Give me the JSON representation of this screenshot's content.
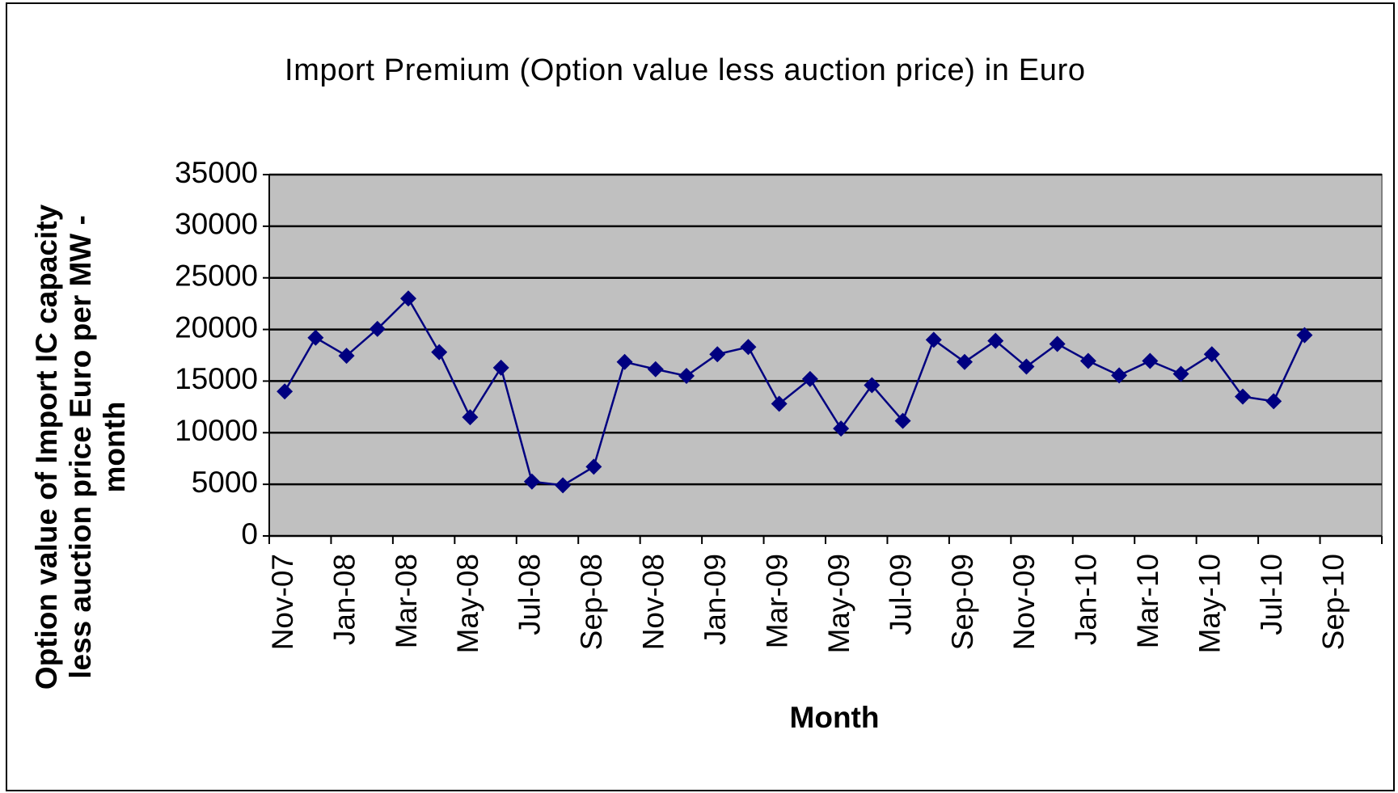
{
  "chart_data": {
    "type": "line",
    "title": "Import Premium (Option value less auction price) in Euro",
    "ylabel": [
      "Option value of Import IC capacity",
      "less auction price Euro per MW -",
      "month"
    ],
    "xlabel": "Month",
    "categories": [
      "Nov-07",
      null,
      "Jan-08",
      null,
      "Mar-08",
      null,
      "May-08",
      null,
      "Jul-08",
      null,
      "Sep-08",
      null,
      "Nov-08",
      null,
      "Jan-09",
      null,
      "Mar-09",
      null,
      "May-09",
      null,
      "Jul-09",
      null,
      "Sep-09",
      null,
      "Nov-09",
      null,
      "Jan-10",
      null,
      "Mar-10",
      null,
      "May-10",
      null,
      "Jul-10",
      null,
      "Sep-10",
      null
    ],
    "series": [
      {
        "color": "#000080",
        "values": [
          14000,
          19200,
          17450,
          20050,
          23000,
          17800,
          11500,
          16300,
          5270,
          4900,
          6700,
          16850,
          16150,
          15500,
          17600,
          18300,
          12800,
          15200,
          10400,
          14600,
          11150,
          19000,
          16850,
          18900,
          16400,
          18600,
          16950,
          15550,
          16950,
          15700,
          17600,
          13500,
          13050,
          19450,
          null,
          null
        ]
      }
    ],
    "ylim": [
      0,
      35000
    ],
    "yticks": [
      0,
      5000,
      10000,
      15000,
      20000,
      25000,
      30000,
      35000
    ],
    "grid": true,
    "plot_background": "#c0c0c0"
  }
}
